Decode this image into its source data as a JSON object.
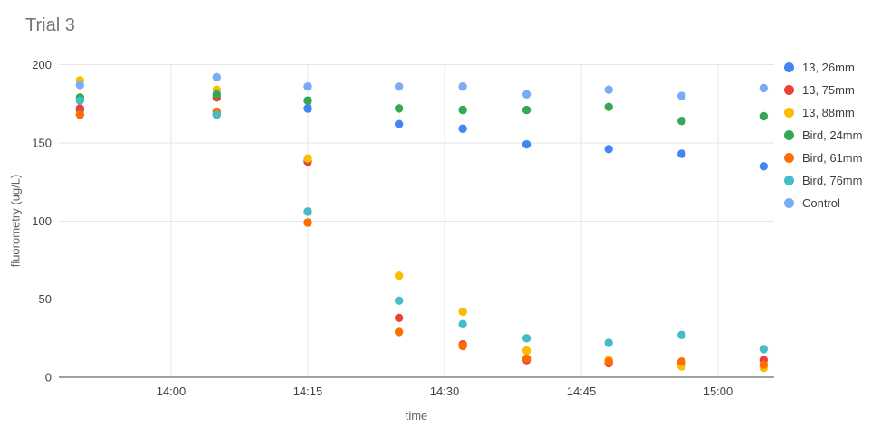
{
  "title": "Trial 3",
  "chart_data": {
    "type": "scatter",
    "title": "Trial 3",
    "xlabel": "time",
    "ylabel": "fluorometry (ug/L)",
    "x_ticks": [
      "14:00",
      "14:15",
      "14:30",
      "14:45",
      "15:00"
    ],
    "y_ticks": [
      0,
      50,
      100,
      150,
      200
    ],
    "ylim": [
      0,
      200
    ],
    "grid": true,
    "legend_position": "right",
    "x": [
      "13:50",
      "14:05",
      "14:15",
      "14:25",
      "14:32",
      "14:39",
      "14:48",
      "14:56",
      "15:05"
    ],
    "series": [
      {
        "name": "13, 26mm",
        "color": "#4285F4",
        "values": [
          171,
          168,
          172,
          162,
          159,
          149,
          146,
          143,
          135
        ]
      },
      {
        "name": "13, 75mm",
        "color": "#EA4335",
        "values": [
          172,
          179,
          138,
          38,
          21,
          11,
          9,
          9,
          11
        ]
      },
      {
        "name": "13, 88mm",
        "color": "#FBBC04",
        "values": [
          190,
          184,
          140,
          65,
          42,
          17,
          11,
          7,
          6
        ]
      },
      {
        "name": "Bird, 24mm",
        "color": "#34A853",
        "values": [
          179,
          181,
          177,
          172,
          171,
          171,
          173,
          164,
          167
        ]
      },
      {
        "name": "Bird, 61mm",
        "color": "#FF6D01",
        "values": [
          168,
          170,
          99,
          29,
          20,
          12,
          10,
          10,
          8
        ]
      },
      {
        "name": "Bird, 76mm",
        "color": "#46BDC6",
        "values": [
          177,
          168,
          106,
          49,
          34,
          25,
          22,
          27,
          18
        ]
      },
      {
        "name": "Control",
        "color": "#7BAAF7",
        "values": [
          187,
          192,
          186,
          186,
          186,
          181,
          184,
          180,
          185
        ]
      }
    ]
  },
  "colors": {
    "gridline": "#e6e6e6",
    "axis_line": "#424242",
    "tick_label": "#424242",
    "axis_title": "#616161",
    "chart_title": "#757575"
  }
}
